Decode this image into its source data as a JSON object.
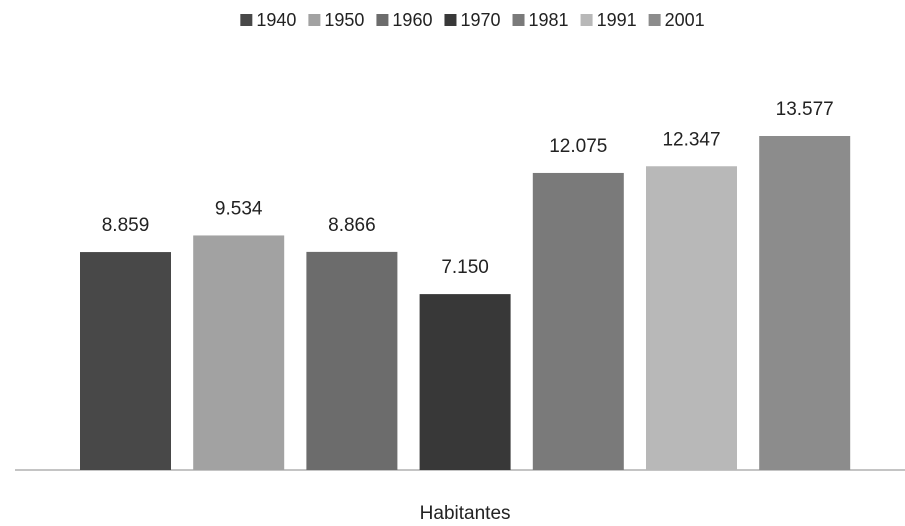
{
  "chart_data": {
    "type": "bar",
    "categories": [
      "Habitantes"
    ],
    "series": [
      {
        "name": "1940",
        "color": "#484848",
        "values": [
          8859
        ],
        "value_labels": [
          "8.859"
        ]
      },
      {
        "name": "1950",
        "color": "#a2a2a2",
        "values": [
          9534
        ],
        "value_labels": [
          "9.534"
        ]
      },
      {
        "name": "1960",
        "color": "#6c6c6c",
        "values": [
          8866
        ],
        "value_labels": [
          "8.866"
        ]
      },
      {
        "name": "1970",
        "color": "#383838",
        "values": [
          7150
        ],
        "value_labels": [
          "7.150"
        ]
      },
      {
        "name": "1981",
        "color": "#7a7a7a",
        "values": [
          12075
        ],
        "value_labels": [
          "12.075"
        ]
      },
      {
        "name": "1991",
        "color": "#b8b8b8",
        "values": [
          12347
        ],
        "value_labels": [
          "12.347"
        ]
      },
      {
        "name": "2001",
        "color": "#8c8c8c",
        "values": [
          13577
        ],
        "value_labels": [
          "13.577"
        ]
      }
    ],
    "legend": "top"
  }
}
